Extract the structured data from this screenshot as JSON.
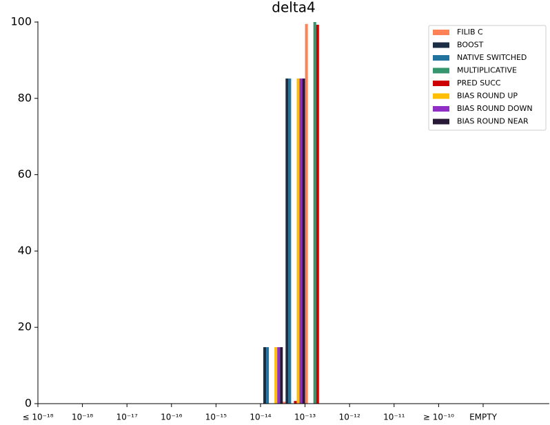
{
  "chart_data": {
    "type": "bar",
    "title": "delta4",
    "categories": [
      "≤ 10⁻¹⁸",
      null,
      "10⁻¹⁸",
      null,
      "10⁻¹⁷",
      null,
      "10⁻¹⁶",
      null,
      "10⁻¹⁵",
      null,
      "10⁻¹⁴",
      null,
      "10⁻¹³",
      null,
      "10⁻¹²",
      null,
      "10⁻¹¹",
      null,
      "≥ 10⁻¹⁰",
      null,
      "EMPTY",
      null
    ],
    "series": [
      {
        "name": "FILIB C",
        "color": "#ff8257",
        "values": [
          0,
          0,
          0,
          0,
          0,
          0,
          0,
          0,
          0,
          0,
          0,
          0.5,
          99.5,
          0,
          0,
          0,
          0,
          0,
          0,
          0,
          0,
          0
        ]
      },
      {
        "name": "BOOST",
        "color": "#1b2e44",
        "values": [
          0,
          0,
          0,
          0,
          0,
          0,
          0,
          0,
          0,
          0,
          14.8,
          85.2,
          0,
          0,
          0,
          0,
          0,
          0,
          0,
          0,
          0,
          0
        ]
      },
      {
        "name": "NATIVE SWITCHED",
        "color": "#22739e",
        "values": [
          0,
          0,
          0,
          0,
          0,
          0,
          0,
          0,
          0,
          0,
          14.8,
          85.2,
          0,
          0,
          0,
          0,
          0,
          0,
          0,
          0,
          0,
          0
        ]
      },
      {
        "name": "MULTIPLICATIVE",
        "color": "#35956c",
        "values": [
          0,
          0,
          0,
          0,
          0,
          0,
          0,
          0,
          0,
          0,
          0,
          0,
          100,
          0,
          0,
          0,
          0,
          0,
          0,
          0,
          0,
          0
        ]
      },
      {
        "name": "PRED SUCC",
        "color": "#cc0000",
        "values": [
          0,
          0,
          0,
          0,
          0,
          0,
          0,
          0,
          0,
          0,
          0,
          0.7,
          99.3,
          0,
          0,
          0,
          0,
          0,
          0,
          0,
          0,
          0
        ]
      },
      {
        "name": "BIAS ROUND UP",
        "color": "#ffbf00",
        "values": [
          0,
          0,
          0,
          0,
          0,
          0,
          0,
          0,
          0,
          0,
          14.8,
          85.2,
          0,
          0,
          0,
          0,
          0,
          0,
          0,
          0,
          0,
          0
        ]
      },
      {
        "name": "BIAS ROUND DOWN",
        "color": "#8f2fc6",
        "values": [
          0,
          0,
          0,
          0,
          0,
          0,
          0,
          0,
          0,
          0,
          14.8,
          85.2,
          0,
          0,
          0,
          0,
          0,
          0,
          0,
          0,
          0,
          0
        ]
      },
      {
        "name": "BIAS ROUND NEAR",
        "color": "#281a36",
        "values": [
          0,
          0,
          0,
          0,
          0,
          0,
          0,
          0,
          0,
          0,
          14.8,
          85.2,
          0,
          0,
          0,
          0,
          0,
          0,
          0,
          0,
          0,
          0
        ]
      }
    ],
    "ylim": [
      0,
      100
    ],
    "yticks": [
      0,
      20,
      40,
      60,
      80,
      100
    ],
    "grid": false,
    "legend": "upper right"
  }
}
